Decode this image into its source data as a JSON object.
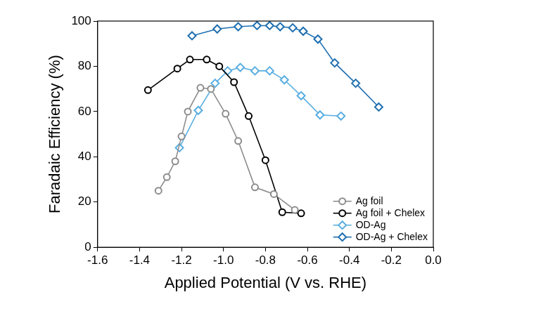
{
  "chart_data": {
    "type": "line",
    "x_label": "Applied Potential (V vs. RHE)",
    "y_label": "Faradaic Efficiency (%)",
    "xlim": [
      -1.6,
      0
    ],
    "xticks": [
      -1.6,
      -1.4,
      -1.2,
      {
        "value": -1,
        "label": "-1.0"
      },
      -0.8,
      -0.6,
      -0.4,
      -0.2,
      {
        "value": 0,
        "label": "0.0"
      }
    ],
    "ylim": [
      0,
      100
    ],
    "yticks": [
      0,
      20,
      40,
      60,
      80,
      100
    ],
    "grid": false,
    "legend": "lower right",
    "series": [
      {
        "name": "Ag foil",
        "color": "#8c8c8c",
        "marker": "circle",
        "x": [
          -1.31,
          -1.27,
          -1.23,
          -1.2,
          -1.17,
          -1.11,
          -1.06,
          -0.99,
          -0.93,
          -0.85,
          -0.76,
          -0.66
        ],
        "values": [
          25,
          31,
          38,
          49,
          60,
          70.5,
          70,
          59,
          47,
          26.5,
          23.5,
          16.5
        ]
      },
      {
        "name": "Ag foil + Chelex",
        "color": "#000000",
        "marker": "circle",
        "x": [
          -1.36,
          -1.22,
          -1.16,
          -1.08,
          -1.02,
          -0.95,
          -0.88,
          -0.8,
          -0.72,
          -0.63
        ],
        "values": [
          69.5,
          79,
          83,
          83,
          80,
          73,
          58,
          38.5,
          15.5,
          15
        ]
      },
      {
        "name": "OD-Ag",
        "color": "#5aaee0",
        "marker": "diamond",
        "x": [
          -1.21,
          -1.12,
          -1.04,
          -0.98,
          -0.92,
          -0.85,
          -0.78,
          -0.71,
          -0.63,
          -0.54,
          -0.44
        ],
        "values": [
          44,
          60.5,
          72.5,
          78,
          79.5,
          78,
          78,
          74,
          67,
          58.5,
          58
        ]
      },
      {
        "name": "OD-Ag + Chelex",
        "color": "#1f6fb0",
        "marker": "diamond",
        "x": [
          -1.15,
          -1.03,
          -0.93,
          -0.84,
          -0.78,
          -0.73,
          -0.67,
          -0.62,
          -0.55,
          -0.47,
          -0.37,
          -0.26
        ],
        "values": [
          93.5,
          96.5,
          97.5,
          98,
          98,
          97.5,
          97,
          95.5,
          92,
          81.5,
          72.5,
          62
        ]
      }
    ]
  }
}
